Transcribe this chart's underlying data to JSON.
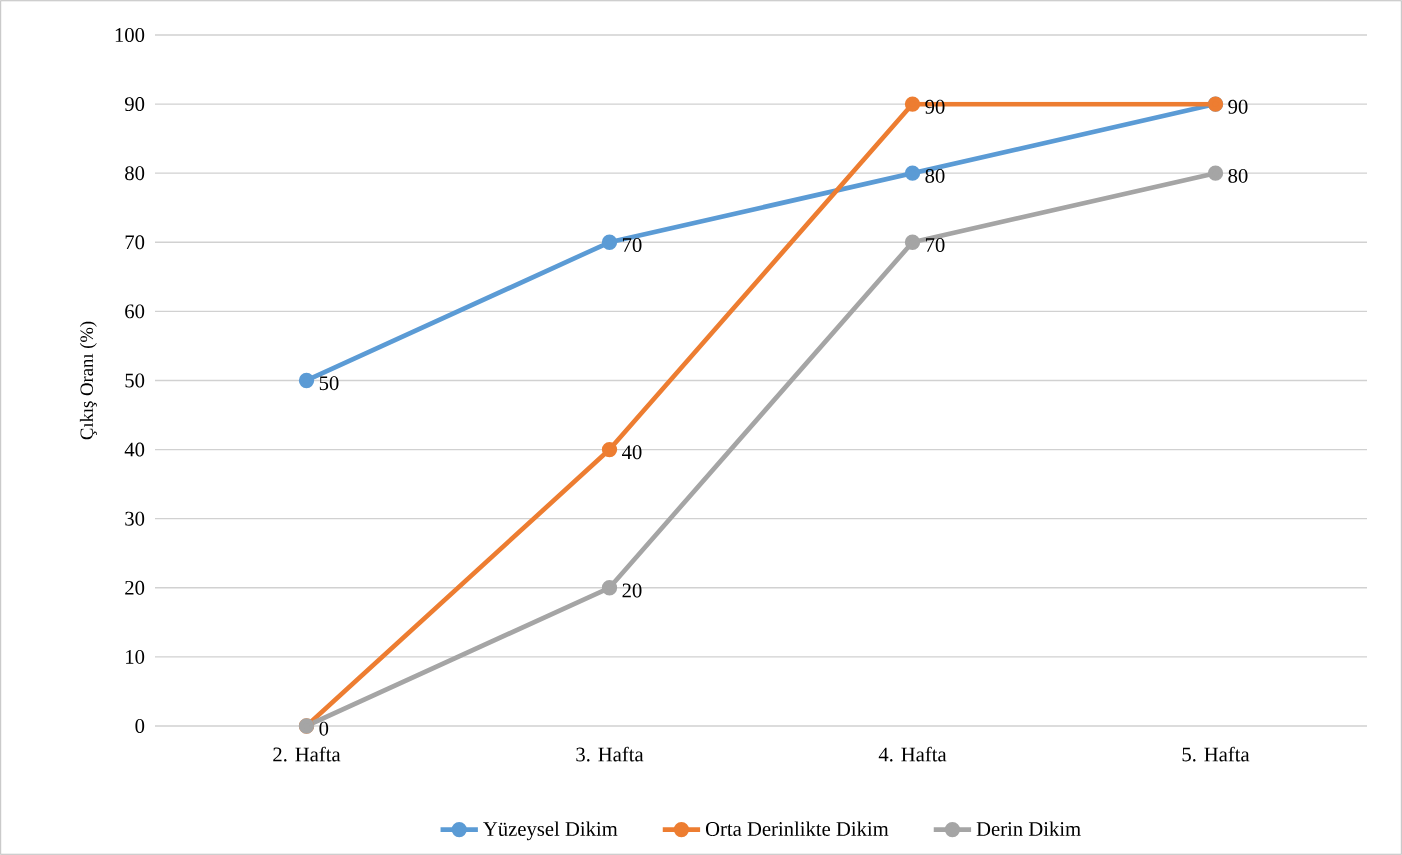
{
  "chart_data": {
    "type": "line",
    "ylabel": "Çıkış Oranı (%)",
    "categories": [
      "2. Hafta",
      "3. Hafta",
      "4. Hafta",
      "5. Hafta"
    ],
    "series": [
      {
        "name": "Yüzeysel Dikim",
        "color": "#5b9bd5",
        "values": [
          50,
          70,
          80,
          90
        ],
        "value_labels": [
          "50",
          "70",
          "80",
          "90"
        ]
      },
      {
        "name": "Orta Derinlikte Dikim",
        "color": "#ed7d31",
        "values": [
          0,
          40,
          90,
          90
        ],
        "value_labels": [
          "0",
          "40",
          "90",
          null
        ]
      },
      {
        "name": "Derin Dikim",
        "color": "#a5a5a5",
        "values": [
          0,
          20,
          70,
          80
        ],
        "value_labels": [
          null,
          "20",
          "70",
          "80"
        ]
      }
    ],
    "ylim": [
      0,
      100
    ],
    "yticks": [
      0,
      10,
      20,
      30,
      40,
      50,
      60,
      70,
      80,
      90,
      100
    ],
    "grid": "y",
    "legend": "bottom",
    "marker": "circle",
    "line_style": "solid"
  }
}
